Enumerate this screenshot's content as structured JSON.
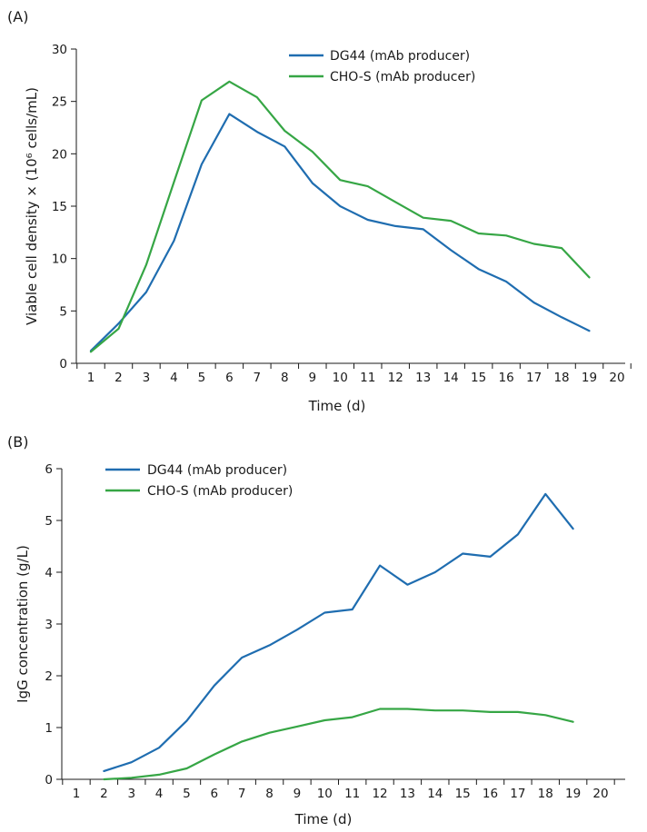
{
  "colors": {
    "dg44": "#1f6db0",
    "chos": "#36a645"
  },
  "chart_data": [
    {
      "panel": "(A)",
      "type": "line",
      "xlabel": "Time (d)",
      "ylabel": "Viable cell density × (10⁶ cells/mL)",
      "xlim": [
        1,
        20
      ],
      "ylim": [
        0,
        30
      ],
      "x_ticks": [
        1,
        2,
        3,
        4,
        5,
        6,
        7,
        8,
        9,
        10,
        11,
        12,
        13,
        14,
        15,
        16,
        17,
        18,
        19,
        20
      ],
      "y_ticks": [
        0,
        5,
        10,
        15,
        20,
        25,
        30
      ],
      "grid": false,
      "legend_position": "top-right",
      "series": [
        {
          "name": "DG44 (mAb producer)",
          "color_key": "dg44",
          "x": [
            1,
            2,
            3,
            4,
            5,
            6,
            7,
            8,
            9,
            10,
            11,
            12,
            13,
            14,
            15,
            16,
            17,
            18,
            19
          ],
          "y": [
            1.2,
            3.8,
            6.8,
            11.7,
            19.0,
            23.8,
            22.1,
            20.7,
            17.2,
            15.0,
            13.7,
            13.1,
            12.8,
            10.8,
            9.0,
            7.8,
            5.8,
            4.4,
            3.1
          ]
        },
        {
          "name": "CHO-S (mAb producer)",
          "color_key": "chos",
          "x": [
            1,
            2,
            3,
            4,
            5,
            6,
            7,
            8,
            9,
            10,
            11,
            12,
            13,
            14,
            15,
            16,
            17,
            18,
            19
          ],
          "y": [
            1.1,
            3.3,
            9.4,
            17.3,
            25.1,
            26.9,
            25.4,
            22.2,
            20.2,
            17.5,
            16.9,
            15.4,
            13.9,
            13.6,
            12.4,
            12.2,
            11.4,
            11.0,
            8.2
          ]
        }
      ]
    },
    {
      "panel": "(B)",
      "type": "line",
      "xlabel": "Time (d)",
      "ylabel": "IgG concentration (g/L)",
      "xlim": [
        1,
        20
      ],
      "ylim": [
        0,
        6
      ],
      "x_ticks": [
        1,
        2,
        3,
        4,
        5,
        6,
        7,
        8,
        9,
        10,
        11,
        12,
        13,
        14,
        15,
        16,
        17,
        18,
        19,
        20
      ],
      "y_ticks": [
        0,
        1,
        2,
        3,
        4,
        5,
        6
      ],
      "grid": false,
      "legend_position": "top-left",
      "series": [
        {
          "name": "DG44 (mAb producer)",
          "color_key": "dg44",
          "x": [
            2,
            3,
            4,
            5,
            6,
            7,
            8,
            9,
            10,
            11,
            12,
            13,
            14,
            15,
            16,
            17,
            18,
            19
          ],
          "y": [
            0.16,
            0.33,
            0.61,
            1.13,
            1.81,
            2.35,
            2.59,
            2.89,
            3.22,
            3.28,
            4.13,
            3.76,
            4.0,
            4.36,
            4.3,
            4.73,
            5.51,
            4.84
          ]
        },
        {
          "name": "CHO-S (mAb producer)",
          "color_key": "chos",
          "x": [
            2,
            3,
            4,
            5,
            6,
            7,
            8,
            9,
            10,
            11,
            12,
            13,
            14,
            15,
            16,
            17,
            18,
            19
          ],
          "y": [
            0.0,
            0.03,
            0.09,
            0.21,
            0.48,
            0.73,
            0.9,
            1.02,
            1.14,
            1.2,
            1.36,
            1.36,
            1.33,
            1.33,
            1.3,
            1.3,
            1.24,
            1.11
          ]
        }
      ]
    }
  ]
}
